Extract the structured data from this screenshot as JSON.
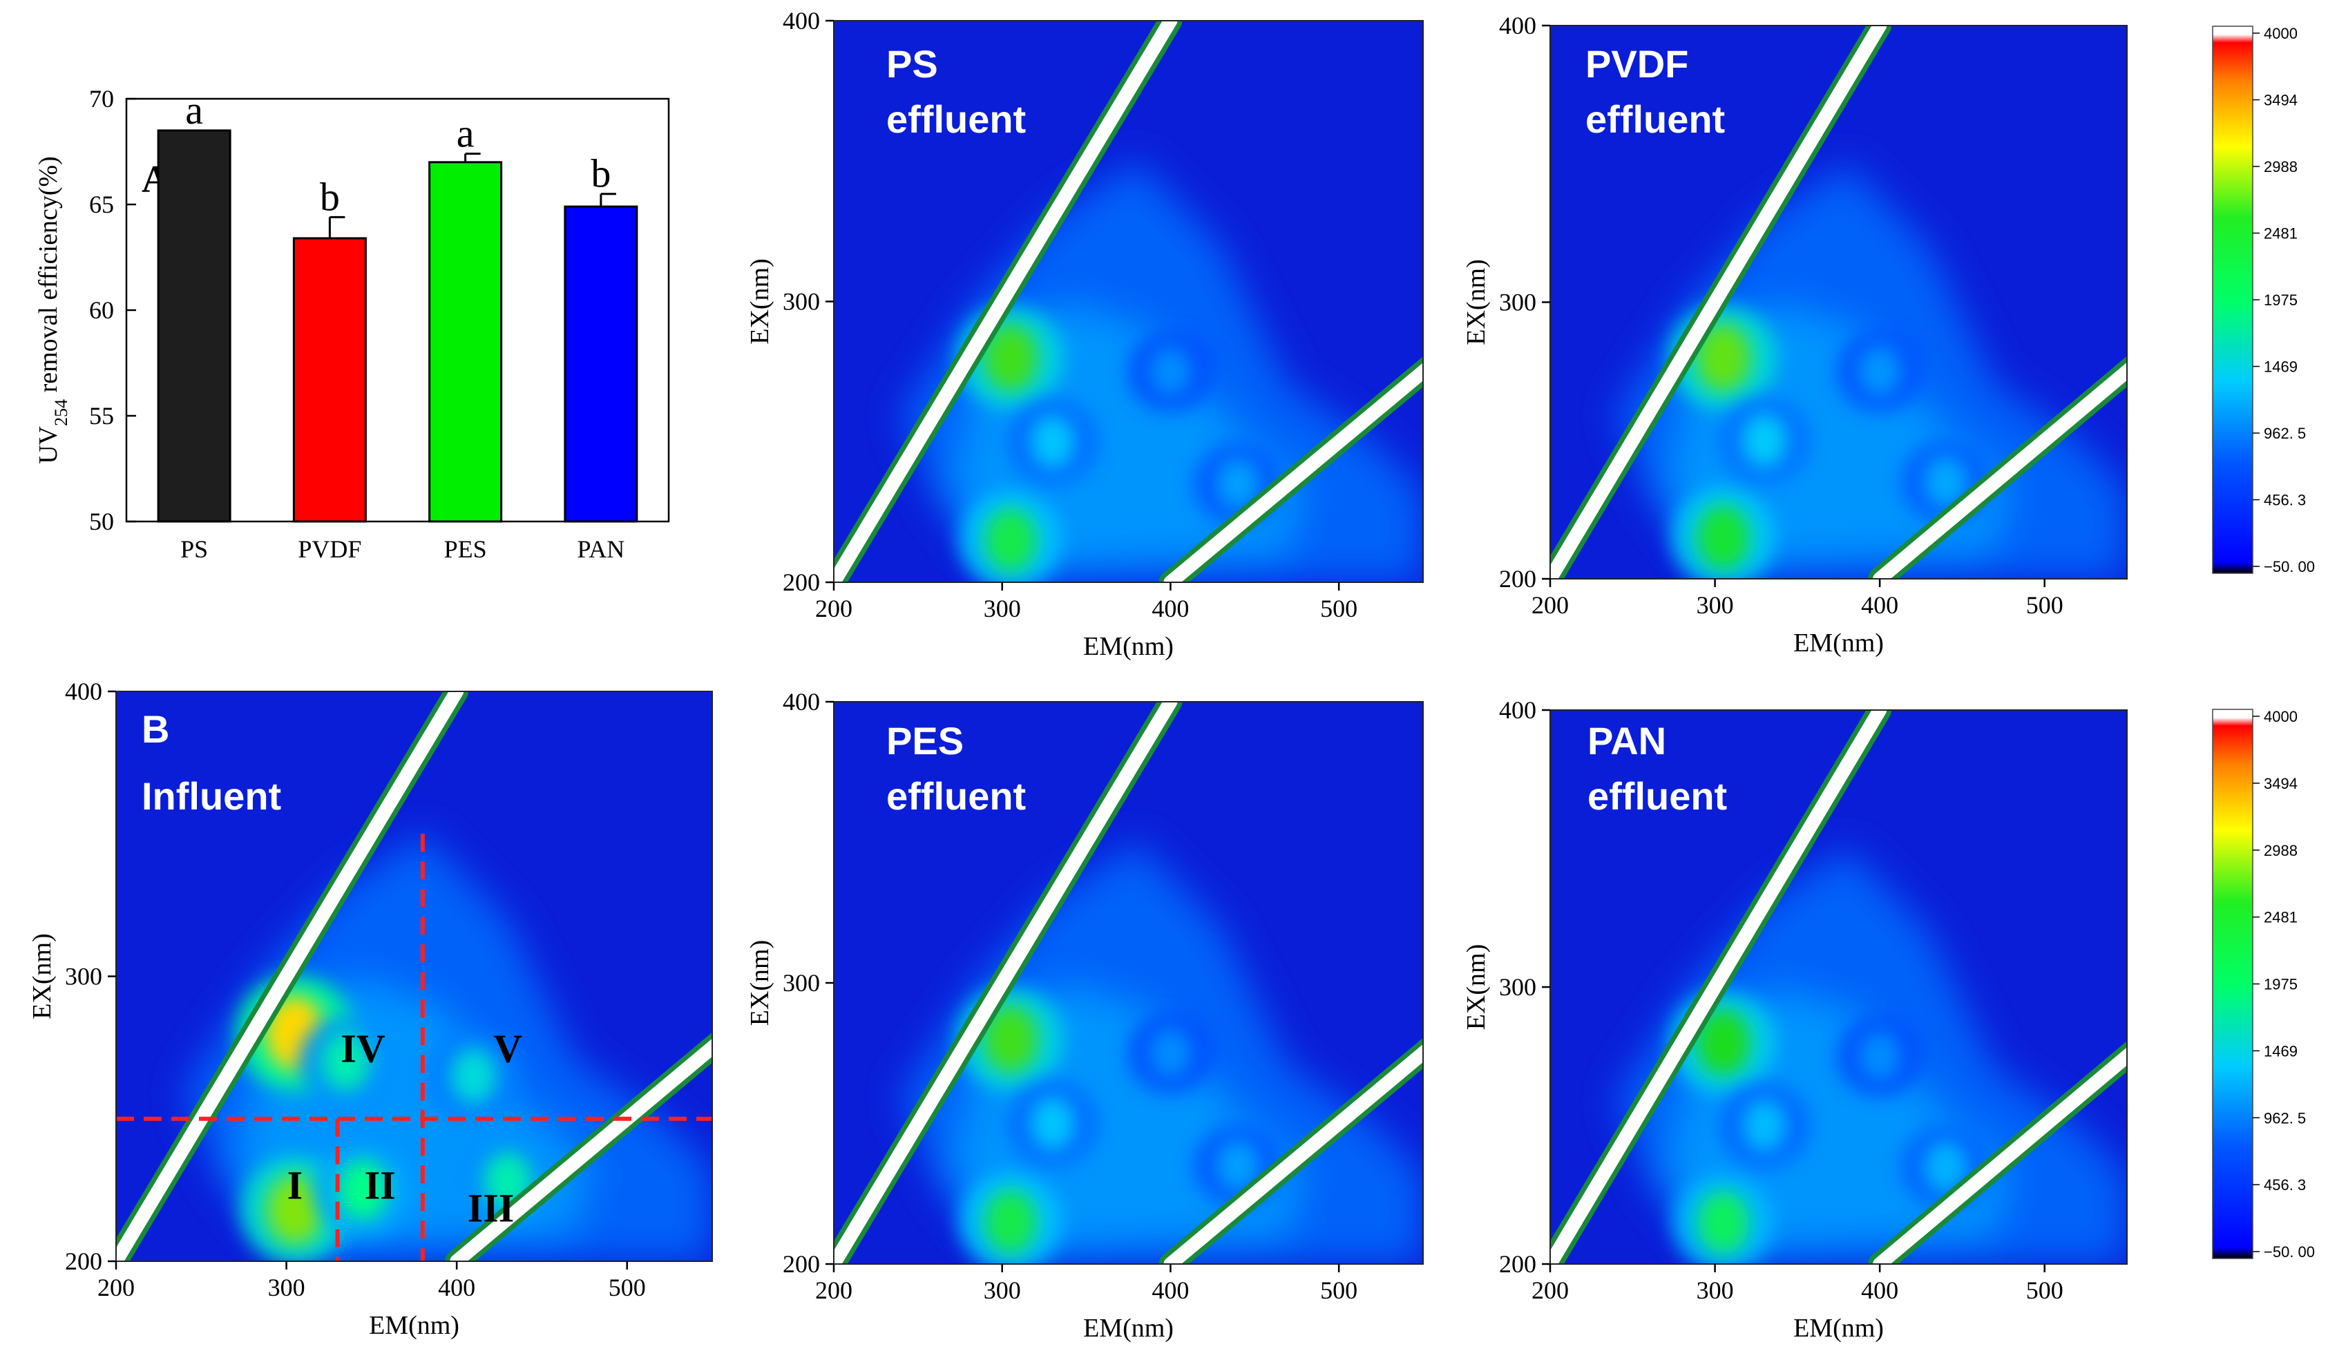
{
  "colors": {
    "map_background": "#0a1ed8",
    "bar_PS": "#1e1e1e",
    "bar_PVDF": "#ff0000",
    "bar_PES": "#00ee00",
    "bar_PAN": "#0000ff",
    "region_lines": "#ff2020"
  },
  "chart_data": [
    {
      "type": "bar",
      "panel_label": "A",
      "title": "",
      "xlabel": "",
      "ylabel": "UV254 removal efficiency(%)",
      "ylabel_main": "UV",
      "ylabel_sub": "254",
      "ylabel_rest": " removal efficiency(%)",
      "categories": [
        "PS",
        "PVDF",
        "PES",
        "PAN"
      ],
      "values": [
        68.5,
        63.4,
        67.0,
        64.9
      ],
      "errors": [
        0.0,
        1.0,
        0.4,
        0.6
      ],
      "significance": [
        "a",
        "b",
        "a",
        "b"
      ],
      "ylim": [
        50,
        70
      ],
      "yticks": [
        "50",
        "55",
        "60",
        "65",
        "70"
      ],
      "grid": false
    },
    {
      "type": "heatmap",
      "id": "ps",
      "title_line1": "PS",
      "title_line2": "effluent",
      "xlabel": "EM(nm)",
      "ylabel": "EX(nm)",
      "xlim": [
        200,
        550
      ],
      "ylim": [
        200,
        400
      ],
      "xticks": [
        "200",
        "300",
        "400",
        "500"
      ],
      "yticks": [
        "200",
        "300",
        "400"
      ],
      "xtick_values": [
        200,
        300,
        400,
        500
      ],
      "ytick_values": [
        200,
        300,
        400
      ],
      "peaks": [
        {
          "em": 305,
          "ex": 280,
          "intensity": 2300
        },
        {
          "em": 305,
          "ex": 215,
          "intensity": 2000
        },
        {
          "em": 330,
          "ex": 250,
          "intensity": 1100
        },
        {
          "em": 400,
          "ex": 275,
          "intensity": 800
        },
        {
          "em": 440,
          "ex": 235,
          "intensity": 900
        }
      ]
    },
    {
      "type": "heatmap",
      "id": "pvdf",
      "title_line1": "PVDF",
      "title_line2": "effluent",
      "xlabel": "EM(nm)",
      "ylabel": "EX(nm)",
      "xlim": [
        200,
        550
      ],
      "ylim": [
        200,
        400
      ],
      "xticks": [
        "200",
        "300",
        "400",
        "500"
      ],
      "yticks": [
        "200",
        "300",
        "400"
      ],
      "xtick_values": [
        200,
        300,
        400,
        500
      ],
      "ytick_values": [
        200,
        300,
        400
      ],
      "peaks": [
        {
          "em": 305,
          "ex": 280,
          "intensity": 2400
        },
        {
          "em": 305,
          "ex": 215,
          "intensity": 2100
        },
        {
          "em": 330,
          "ex": 250,
          "intensity": 1150
        },
        {
          "em": 400,
          "ex": 275,
          "intensity": 850
        },
        {
          "em": 440,
          "ex": 235,
          "intensity": 950
        }
      ]
    },
    {
      "type": "heatmap",
      "id": "influent",
      "panel_label": "B",
      "title_line1": "",
      "title_line2": "Influent",
      "xlabel": "EM(nm)",
      "ylabel": "EX(nm)",
      "xlim": [
        200,
        550
      ],
      "ylim": [
        200,
        400
      ],
      "xticks": [
        "200",
        "300",
        "400",
        "500"
      ],
      "yticks": [
        "200",
        "300",
        "400"
      ],
      "xtick_values": [
        200,
        300,
        400,
        500
      ],
      "ytick_values": [
        200,
        300,
        400
      ],
      "regions": [
        "I",
        "II",
        "III",
        "IV",
        "V"
      ],
      "region_boundaries": {
        "ex_split": 250,
        "em_split_1": 330,
        "em_split_2": 380
      },
      "peaks": [
        {
          "em": 305,
          "ex": 280,
          "intensity": 3000
        },
        {
          "em": 305,
          "ex": 218,
          "intensity": 2500
        },
        {
          "em": 345,
          "ex": 225,
          "intensity": 1700
        },
        {
          "em": 335,
          "ex": 270,
          "intensity": 1500
        },
        {
          "em": 410,
          "ex": 265,
          "intensity": 1300
        },
        {
          "em": 430,
          "ex": 228,
          "intensity": 1500
        }
      ]
    },
    {
      "type": "heatmap",
      "id": "pes",
      "title_line1": "PES",
      "title_line2": "effluent",
      "xlabel": "EM(nm)",
      "ylabel": "EX(nm)",
      "xlim": [
        200,
        550
      ],
      "ylim": [
        200,
        400
      ],
      "xticks": [
        "200",
        "300",
        "400",
        "500"
      ],
      "yticks": [
        "200",
        "300",
        "400"
      ],
      "xtick_values": [
        200,
        300,
        400,
        500
      ],
      "ytick_values": [
        200,
        300,
        400
      ],
      "peaks": [
        {
          "em": 305,
          "ex": 280,
          "intensity": 2300
        },
        {
          "em": 305,
          "ex": 215,
          "intensity": 2000
        },
        {
          "em": 330,
          "ex": 250,
          "intensity": 1100
        },
        {
          "em": 400,
          "ex": 275,
          "intensity": 800
        },
        {
          "em": 440,
          "ex": 235,
          "intensity": 900
        }
      ]
    },
    {
      "type": "heatmap",
      "id": "pan",
      "title_line1": "PAN",
      "title_line2": "effluent",
      "xlabel": "EM(nm)",
      "ylabel": "EX(nm)",
      "xlim": [
        200,
        550
      ],
      "ylim": [
        200,
        400
      ],
      "xticks": [
        "200",
        "300",
        "400",
        "500"
      ],
      "yticks": [
        "200",
        "300",
        "400"
      ],
      "xtick_values": [
        200,
        300,
        400,
        500
      ],
      "ytick_values": [
        200,
        300,
        400
      ],
      "peaks": [
        {
          "em": 305,
          "ex": 280,
          "intensity": 2200
        },
        {
          "em": 305,
          "ex": 215,
          "intensity": 1900
        },
        {
          "em": 330,
          "ex": 250,
          "intensity": 1050
        },
        {
          "em": 400,
          "ex": 275,
          "intensity": 800
        },
        {
          "em": 440,
          "ex": 235,
          "intensity": 1000
        }
      ]
    }
  ],
  "colorbar": {
    "labels": [
      "4000",
      "3494",
      "2988",
      "2481",
      "1975",
      "1469",
      "962. 5",
      "456. 3",
      "−50. 00"
    ],
    "min": -50,
    "max": 4000
  }
}
